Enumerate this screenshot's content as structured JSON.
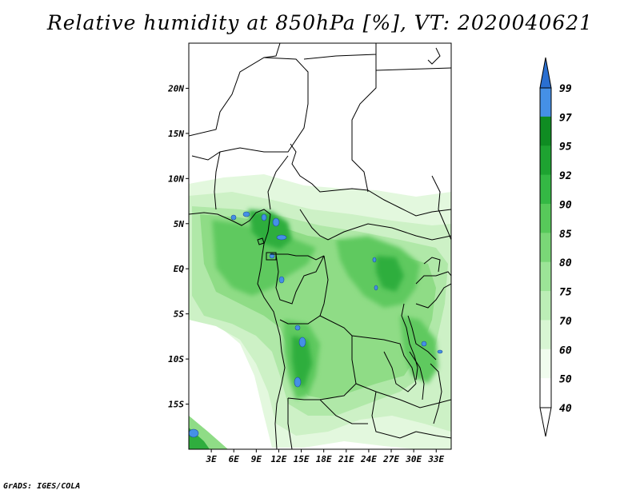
{
  "title": "Relative humidity at 850hPa [%], VT: 2020040621",
  "credit": "GrADS: IGES/COLA",
  "map": {
    "lat_ticks": [
      "20N",
      "15N",
      "10N",
      "5N",
      "EQ",
      "5S",
      "10S",
      "15S"
    ],
    "lat_values": [
      20,
      15,
      10,
      5,
      0,
      -5,
      -10,
      -15
    ],
    "lon_ticks": [
      "3E",
      "6E",
      "9E",
      "12E",
      "15E",
      "18E",
      "21E",
      "24E",
      "27E",
      "30E",
      "33E"
    ],
    "lon_values": [
      3,
      6,
      9,
      12,
      15,
      18,
      21,
      24,
      27,
      30,
      33
    ],
    "lon_range": [
      0,
      35
    ],
    "lat_range": [
      -20,
      25
    ]
  },
  "colorbar": {
    "levels": [
      "99",
      "97",
      "95",
      "92",
      "90",
      "85",
      "80",
      "75",
      "70",
      "60",
      "50",
      "40"
    ],
    "colors": [
      "#2a6fd0",
      "#4590e6",
      "#0f8c22",
      "#1ea331",
      "#34b844",
      "#57c95a",
      "#7ad777",
      "#9ce497",
      "#bceeb6",
      "#d8f6d3",
      "#f0fcee",
      "#ffffff"
    ],
    "top_arrow_color": "#2a6fd0",
    "bottom_arrow_color": "#ffffff"
  }
}
